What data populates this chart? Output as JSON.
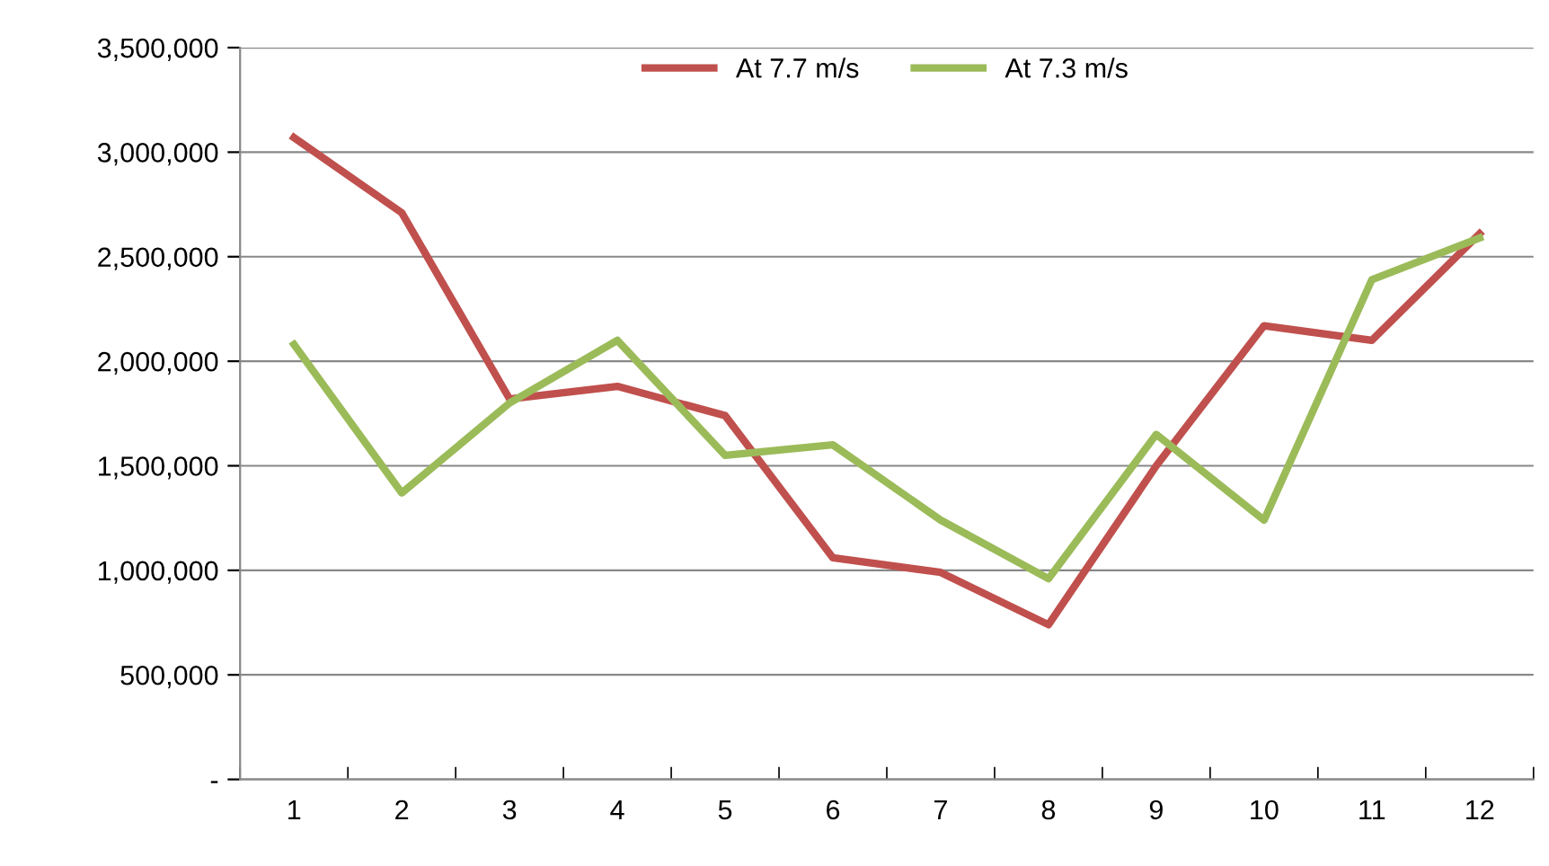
{
  "chart_data": {
    "type": "line",
    "categories": [
      "1",
      "2",
      "3",
      "4",
      "5",
      "6",
      "7",
      "8",
      "9",
      "10",
      "11",
      "12"
    ],
    "series": [
      {
        "name": "At 7.7 m/s",
        "color": "#c0504d",
        "values": [
          3070000,
          2710000,
          1820000,
          1880000,
          1740000,
          1060000,
          990000,
          740000,
          1500000,
          2170000,
          2100000,
          2610000
        ]
      },
      {
        "name": "At 7.3 m/s",
        "color": "#9bbb59",
        "values": [
          2080000,
          1370000,
          1800000,
          2100000,
          1550000,
          1600000,
          1240000,
          960000,
          1650000,
          1240000,
          2390000,
          2590000
        ]
      }
    ],
    "ylim": [
      0,
      3500000
    ],
    "yticks": [
      {
        "value": 0,
        "label": "-"
      },
      {
        "value": 500000,
        "label": "500,000"
      },
      {
        "value": 1000000,
        "label": "1,000,000"
      },
      {
        "value": 1500000,
        "label": "1,500,000"
      },
      {
        "value": 2000000,
        "label": "2,000,000"
      },
      {
        "value": 2500000,
        "label": "2,500,000"
      },
      {
        "value": 3000000,
        "label": "3,000,000"
      },
      {
        "value": 3500000,
        "label": "3,500,000"
      }
    ],
    "grid": "y",
    "legend": "top",
    "marker": "none",
    "line_style": "solid"
  }
}
